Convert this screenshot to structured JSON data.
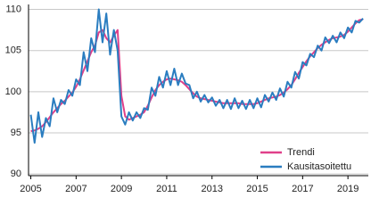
{
  "chart_data": {
    "type": "line",
    "x": [
      2005,
      2005.167,
      2005.333,
      2005.5,
      2005.667,
      2005.833,
      2006,
      2006.167,
      2006.333,
      2006.5,
      2006.667,
      2006.833,
      2007,
      2007.167,
      2007.333,
      2007.5,
      2007.667,
      2007.833,
      2008,
      2008.167,
      2008.333,
      2008.5,
      2008.667,
      2008.833,
      2009,
      2009.167,
      2009.333,
      2009.5,
      2009.667,
      2009.833,
      2010,
      2010.167,
      2010.333,
      2010.5,
      2010.667,
      2010.833,
      2011,
      2011.167,
      2011.333,
      2011.5,
      2011.667,
      2011.833,
      2012,
      2012.167,
      2012.333,
      2012.5,
      2012.667,
      2012.833,
      2013,
      2013.167,
      2013.333,
      2013.5,
      2013.667,
      2013.833,
      2014,
      2014.167,
      2014.333,
      2014.5,
      2014.667,
      2014.833,
      2015,
      2015.167,
      2015.333,
      2015.5,
      2015.667,
      2015.833,
      2016,
      2016.167,
      2016.333,
      2016.5,
      2016.667,
      2016.833,
      2017,
      2017.167,
      2017.333,
      2017.5,
      2017.667,
      2017.833,
      2018,
      2018.167,
      2018.333,
      2018.5,
      2018.667,
      2018.833,
      2019,
      2019.167,
      2019.333,
      2019.5,
      2019.667
    ],
    "series": [
      {
        "name": "Trendi",
        "color": "#e0408a",
        "values": [
          95.2,
          95.3,
          95.5,
          95.8,
          96.3,
          96.9,
          97.5,
          98.0,
          98.5,
          98.9,
          99.4,
          99.9,
          100.6,
          101.5,
          102.6,
          103.7,
          104.8,
          105.6,
          107.2,
          107.5,
          106.5,
          106.0,
          106.8,
          107.5,
          99.5,
          97.0,
          96.6,
          96.8,
          97.0,
          97.2,
          97.5,
          98.3,
          99.3,
          100.2,
          100.8,
          101.2,
          101.5,
          101.6,
          101.5,
          101.4,
          101.2,
          100.8,
          100.3,
          99.8,
          99.4,
          99.2,
          99.1,
          99.0,
          98.9,
          98.8,
          98.7,
          98.6,
          98.6,
          98.6,
          98.6,
          98.6,
          98.5,
          98.5,
          98.5,
          98.5,
          98.6,
          98.8,
          99.0,
          99.2,
          99.3,
          99.4,
          99.6,
          99.9,
          100.3,
          100.8,
          101.5,
          102.3,
          103.0,
          103.7,
          104.3,
          104.8,
          105.3,
          105.7,
          106.0,
          106.3,
          106.5,
          106.6,
          106.7,
          106.9,
          107.3,
          107.8,
          108.3,
          108.7,
          108.8
        ]
      },
      {
        "name": "Kausitasoitettu",
        "color": "#2a7dc0",
        "values": [
          97.2,
          93.8,
          97.5,
          94.5,
          96.8,
          95.8,
          99.2,
          97.5,
          99.0,
          98.5,
          100.2,
          99.5,
          101.5,
          100.8,
          104.8,
          102.5,
          106.5,
          104.8,
          110.0,
          106.0,
          109.5,
          104.5,
          107.5,
          105.0,
          97.0,
          96.0,
          97.5,
          96.5,
          97.5,
          96.8,
          98.0,
          97.8,
          100.5,
          99.5,
          101.8,
          100.5,
          102.5,
          100.8,
          102.8,
          100.8,
          102.2,
          101.0,
          100.8,
          99.2,
          100.0,
          98.8,
          99.6,
          98.7,
          99.3,
          98.3,
          99.0,
          98.0,
          99.0,
          97.9,
          99.2,
          98.0,
          98.9,
          97.9,
          99.0,
          98.0,
          99.2,
          98.1,
          99.6,
          98.8,
          99.9,
          99.0,
          100.4,
          99.4,
          101.2,
          100.5,
          102.4,
          101.6,
          103.6,
          103.2,
          104.6,
          104.2,
          105.6,
          105.0,
          106.6,
          105.9,
          106.8,
          106.0,
          107.2,
          106.5,
          107.8,
          107.2,
          108.6,
          108.4,
          108.9
        ]
      }
    ],
    "xlim": [
      2004.9,
      2019.9
    ],
    "xticks": [
      2005,
      2007,
      2009,
      2011,
      2013,
      2015,
      2017,
      2019
    ],
    "ylim": [
      89.8,
      110.6
    ],
    "yticks": [
      90,
      95,
      100,
      105,
      110
    ],
    "grid": true,
    "legend": "bottom-right"
  }
}
